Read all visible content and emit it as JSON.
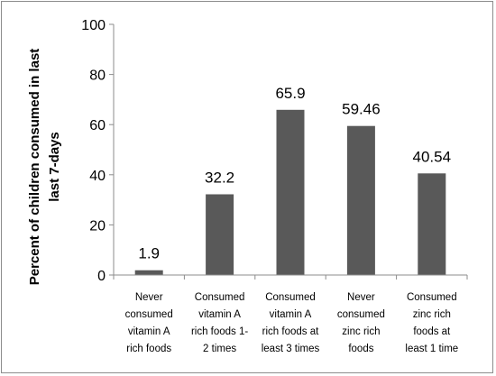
{
  "chart_data": {
    "type": "bar",
    "categories": [
      "Never consumed vitamin A rich foods",
      "Consumed vitamin A rich foods 1- 2 times",
      "Consumed vitamin A rich foods at least 3 times",
      "Never consumed zinc rich foods",
      "Consumed zinc rich foods at least 1 time"
    ],
    "category_lines": [
      [
        "Never",
        "consumed",
        "vitamin A",
        "rich foods"
      ],
      [
        "Consumed",
        "vitamin A",
        "rich foods 1-",
        "2 times"
      ],
      [
        "Consumed",
        "vitamin A",
        "rich foods at",
        "least 3 times"
      ],
      [
        "Never",
        "consumed",
        "zinc rich",
        "foods"
      ],
      [
        "Consumed",
        "zinc rich",
        "foods at",
        "least 1 time"
      ]
    ],
    "values": [
      1.9,
      32.2,
      65.9,
      59.46,
      40.54
    ],
    "data_labels": [
      "1.9",
      "32.2",
      "65.9",
      "59.46",
      "40.54"
    ],
    "title": "",
    "xlabel": "",
    "ylabel": "Percent of children consumed in last last 7-days",
    "ylabel_lines": [
      "Percent of children consumed in last",
      "last 7-days"
    ],
    "ylim": [
      0,
      100
    ],
    "yticks": [
      0,
      20,
      40,
      60,
      80,
      100
    ],
    "grid": false,
    "legend": "none",
    "bar_color": "#595959"
  }
}
